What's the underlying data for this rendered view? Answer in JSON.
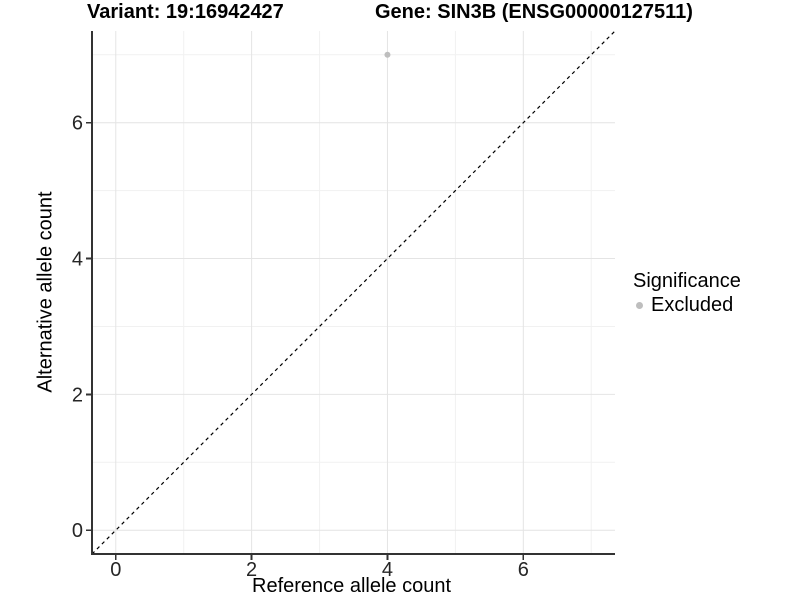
{
  "chart_data": {
    "type": "scatter",
    "title_left": "Variant: 19:16942427",
    "title_right": "Gene: SIN3B (ENSG00000127511)",
    "xlabel": "Reference allele count",
    "ylabel": "Alternative allele count",
    "xlim": [
      -0.35,
      7.35
    ],
    "ylim": [
      -0.35,
      7.35
    ],
    "xticks": [
      0,
      2,
      4,
      6
    ],
    "yticks": [
      0,
      2,
      4,
      6
    ],
    "x_minor_ticks": [
      1,
      3,
      5,
      7
    ],
    "y_minor_ticks": [
      1,
      3,
      5,
      7
    ],
    "grid": "major and minor, light gray on white",
    "legend_position": "right",
    "legend": {
      "title": "Significance",
      "entries": [
        {
          "label": "Excluded",
          "color": "#bebebe"
        }
      ]
    },
    "series": [
      {
        "name": "Excluded",
        "color": "#bebebe",
        "points": [
          {
            "x": 4,
            "y": 7
          }
        ]
      }
    ],
    "reference_line": {
      "description": "identity line y = x",
      "slope": 1,
      "intercept": 0,
      "style": "dashed",
      "color": "#000000"
    }
  },
  "style": {
    "grid_major_color": "#e4e4e4",
    "grid_minor_color": "#f1f1f1",
    "axis_line_color": "#333333",
    "tick_label_color": "#262626",
    "background_color": "#ffffff"
  }
}
